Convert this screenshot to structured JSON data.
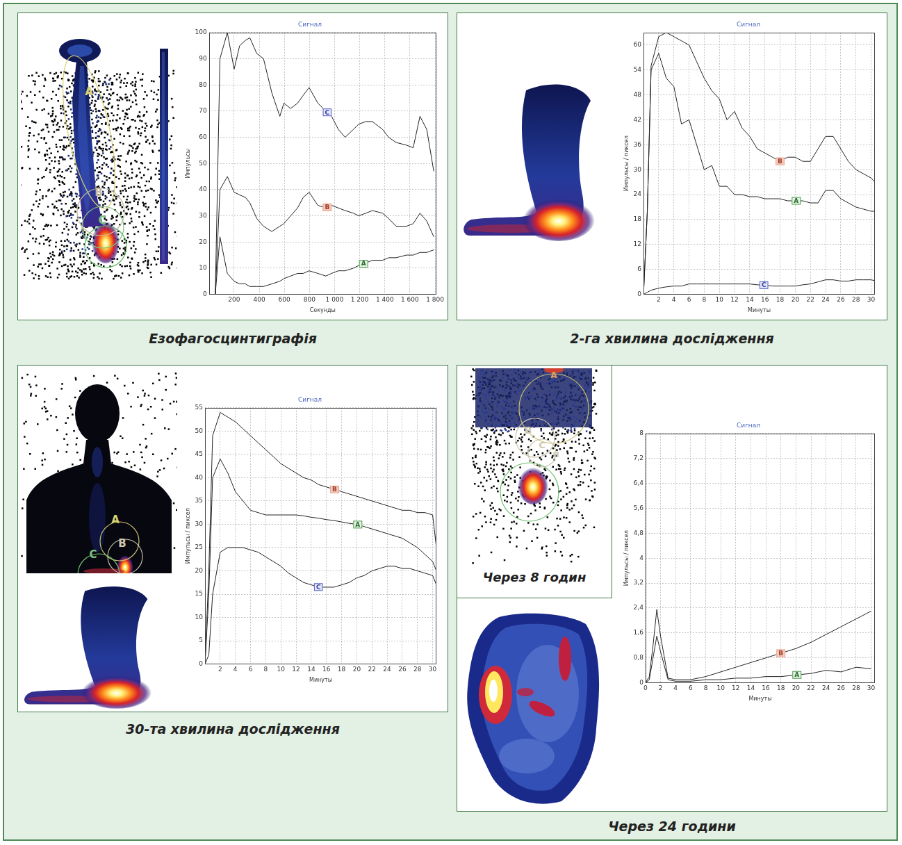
{
  "chart_data": [
    {
      "type": "line",
      "title": "Сигнал",
      "x_label": "Секунды",
      "y_label": "Импульсы",
      "x": [
        0,
        50,
        87,
        146,
        200,
        244,
        290,
        325,
        380,
        434,
        500,
        564,
        596,
        650,
        705,
        750,
        797,
        867,
        930,
        976,
        1030,
        1084,
        1150,
        1192,
        1250,
        1301,
        1382,
        1430,
        1490,
        1572,
        1626,
        1680,
        1734,
        1790
      ],
      "series": [
        {
          "name": "C",
          "color": "#222222",
          "values": [
            0,
            0,
            90,
            100,
            86,
            95,
            97,
            98,
            92,
            90,
            77,
            68,
            73,
            71,
            73,
            76,
            79,
            73,
            70,
            68,
            63,
            60,
            63,
            65,
            66,
            66,
            63,
            60,
            58,
            57,
            56,
            68,
            63,
            47
          ]
        },
        {
          "name": "B",
          "color": "#222222",
          "values": [
            0,
            0,
            40,
            45,
            39,
            38,
            37,
            35,
            29,
            26,
            24,
            26,
            27,
            30,
            33,
            37,
            39,
            34,
            33,
            34,
            33,
            32,
            31,
            30,
            31,
            32,
            31,
            29,
            26,
            26,
            27,
            31,
            28,
            22
          ]
        },
        {
          "name": "A",
          "color": "#222222",
          "values": [
            0,
            0,
            22,
            8,
            5,
            4,
            4,
            3,
            3,
            3,
            4,
            5,
            6,
            7,
            8,
            8,
            9,
            8,
            7,
            8,
            9,
            9,
            10,
            11,
            12,
            13,
            13,
            14,
            14,
            15,
            15,
            16,
            16,
            17
          ]
        }
      ],
      "xlim": [
        0,
        1810
      ],
      "ylim": [
        0,
        100
      ],
      "xticks": [
        200,
        400,
        600,
        800,
        {
          "value": 1000,
          "label": "1 000"
        },
        {
          "value": 1200,
          "label": "1 200"
        },
        {
          "value": 1400,
          "label": "1 400"
        },
        {
          "value": 1600,
          "label": "1 600"
        },
        {
          "value": 1800,
          "label": "1 800"
        }
      ],
      "yticks": [
        0,
        10,
        20,
        30,
        40,
        50,
        60,
        70,
        80,
        90,
        100
      ],
      "grid": true
    },
    {
      "type": "line",
      "title": "Сигнал",
      "x_label": "Минуты",
      "y_label": "Импульсы / пиксел",
      "x": [
        0,
        0.5,
        1,
        2,
        3,
        4,
        5,
        6,
        7,
        8,
        9,
        10,
        11,
        12,
        13,
        14,
        15,
        16,
        17,
        18,
        19,
        20,
        21,
        22,
        23,
        24,
        25,
        26,
        27,
        28,
        29,
        30,
        30.5
      ],
      "series": [
        {
          "name": "B",
          "color": "#222222",
          "values": [
            0,
            20,
            55,
            62,
            63,
            62,
            61,
            60,
            56,
            52,
            49,
            47,
            42,
            44,
            40,
            38,
            35,
            34,
            33,
            32,
            33,
            33,
            32,
            32,
            35,
            38,
            38,
            35,
            32,
            30,
            29,
            28,
            27
          ]
        },
        {
          "name": "A",
          "color": "#222222",
          "values": [
            0,
            20,
            54,
            58,
            52,
            50,
            41,
            42,
            36,
            30,
            31,
            26,
            26,
            24,
            24,
            23.5,
            23.5,
            23,
            23,
            23,
            22.5,
            22.5,
            22.5,
            22,
            22,
            25,
            25,
            23,
            22,
            21,
            20.5,
            20,
            20
          ]
        },
        {
          "name": "C",
          "color": "#222222",
          "values": [
            0,
            0.5,
            1,
            1.5,
            1.8,
            2,
            2,
            2.5,
            2.5,
            2.5,
            2.5,
            2.5,
            2.5,
            2.5,
            2.5,
            2.5,
            2.3,
            2.2,
            2,
            2,
            2,
            2,
            2.3,
            2.5,
            3,
            3.5,
            3.5,
            3.2,
            3.2,
            3.5,
            3.5,
            3.5,
            3.3
          ]
        }
      ],
      "xlim": [
        0,
        30.5
      ],
      "ylim": [
        0,
        63
      ],
      "xticks": [
        2,
        4,
        6,
        8,
        10,
        12,
        14,
        16,
        18,
        20,
        22,
        24,
        26,
        28,
        30
      ],
      "yticks": [
        0,
        6,
        12,
        18,
        24,
        30,
        36,
        42,
        48,
        54,
        60
      ],
      "grid": true
    },
    {
      "type": "line",
      "title": "Сигнал",
      "x_label": "Минуты",
      "y_label": "Импульсы / пиксел",
      "x": [
        0,
        0.5,
        1,
        2,
        3,
        4,
        5,
        6,
        7,
        8,
        9,
        10,
        11,
        12,
        13,
        14,
        15,
        16,
        17,
        18,
        19,
        20,
        21,
        22,
        23,
        24,
        25,
        26,
        27,
        28,
        29,
        30,
        30.5
      ],
      "series": [
        {
          "name": "B",
          "color": "#222222",
          "values": [
            0,
            20,
            49,
            54,
            53,
            52,
            50.5,
            49,
            47.5,
            46,
            44.5,
            43,
            42,
            41,
            40,
            39.5,
            38.5,
            38,
            37.5,
            37,
            36.5,
            36,
            35.5,
            35,
            34.5,
            34,
            33.5,
            33,
            33,
            32.5,
            32.5,
            32,
            25
          ]
        },
        {
          "name": "A",
          "color": "#222222",
          "values": [
            0,
            15,
            40,
            44,
            41,
            37,
            35,
            33,
            32.5,
            32,
            32,
            32,
            32,
            32,
            31.8,
            31.5,
            31.3,
            31,
            30.8,
            30.5,
            30.2,
            30,
            29.5,
            29,
            28.5,
            28,
            27.5,
            27,
            26,
            25,
            23.5,
            22,
            20
          ]
        },
        {
          "name": "C",
          "color": "#222222",
          "values": [
            0,
            2,
            15,
            24,
            25,
            25,
            25,
            24.5,
            24,
            23,
            22,
            21,
            19.5,
            18.5,
            17.5,
            17,
            16.5,
            16.5,
            16.5,
            17,
            17.5,
            18.5,
            19,
            20,
            20.5,
            21,
            21,
            20.5,
            20.5,
            20,
            19.5,
            19,
            17
          ]
        }
      ],
      "xlim": [
        0,
        30.5
      ],
      "ylim": [
        0,
        55
      ],
      "xticks": [
        2,
        4,
        6,
        8,
        10,
        12,
        14,
        16,
        18,
        20,
        22,
        24,
        26,
        28,
        30
      ],
      "yticks": [
        0,
        5,
        10,
        15,
        20,
        25,
        30,
        35,
        40,
        45,
        50,
        55
      ],
      "grid": true
    },
    {
      "type": "line",
      "title": "Сигнал",
      "x_label": "Минуты",
      "y_label": "Импульсы / пиксел",
      "x": [
        0,
        0.5,
        1,
        1.5,
        2,
        3,
        4,
        6,
        8,
        10,
        12,
        14,
        16,
        18,
        20,
        22,
        24,
        26,
        28,
        30
      ],
      "series": [
        {
          "name": "B",
          "color": "#222222",
          "values": [
            0,
            0.2,
            1.2,
            2.35,
            1.5,
            0.15,
            0.1,
            0.1,
            0.2,
            0.35,
            0.5,
            0.65,
            0.8,
            0.95,
            1.1,
            1.3,
            1.55,
            1.8,
            2.05,
            2.3
          ]
        },
        {
          "name": "A",
          "color": "#222222",
          "values": [
            0,
            0.1,
            0.8,
            1.5,
            1.0,
            0.1,
            0.05,
            0.05,
            0.1,
            0.1,
            0.15,
            0.15,
            0.2,
            0.2,
            0.25,
            0.3,
            0.4,
            0.35,
            0.5,
            0.45
          ]
        }
      ],
      "xlim": [
        0,
        30.5
      ],
      "ylim": [
        0,
        8
      ],
      "xticks": [
        0,
        2,
        4,
        6,
        8,
        10,
        12,
        14,
        16,
        18,
        20,
        22,
        24,
        26,
        28,
        30
      ],
      "yticks": [
        0,
        {
          "value": 0.8,
          "label": "0,8"
        },
        {
          "value": 1.6,
          "label": "1,6"
        },
        {
          "value": 2.4,
          "label": "2,4"
        },
        {
          "value": 3.2,
          "label": "3,2"
        },
        4,
        {
          "value": 4.8,
          "label": "4,8"
        },
        {
          "value": 5.6,
          "label": "5,6"
        },
        {
          "value": 6.4,
          "label": "6,4"
        },
        {
          "value": 7.2,
          "label": "7,2"
        },
        8
      ],
      "grid": true
    }
  ],
  "panels": [
    {
      "caption": "Езофагосцинтиграфія",
      "image_labels": [
        "A",
        "B",
        "C"
      ]
    },
    {
      "caption": "2-га хвилина дослідження"
    },
    {
      "caption": "30-та хвилина дослідження",
      "image_labels": [
        "A",
        "B",
        "C"
      ]
    },
    {
      "caption": "Через 24 години",
      "inset_caption": "Через 8 годин",
      "image_labels": [
        "A",
        "B",
        "C",
        "H"
      ]
    }
  ]
}
